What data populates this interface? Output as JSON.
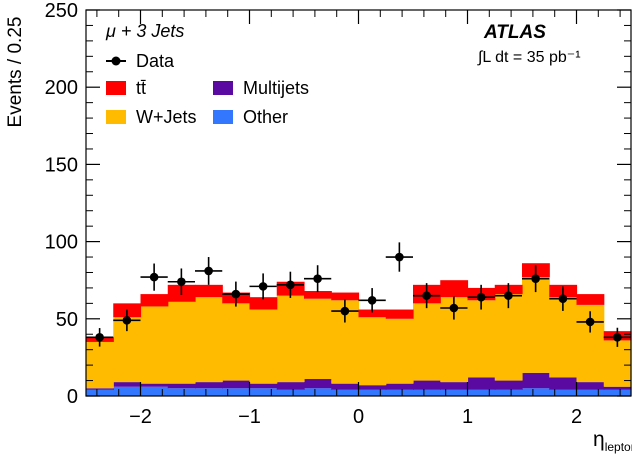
{
  "chart_data": {
    "type": "bar",
    "stacked": true,
    "title": "",
    "ylabel": "Events / 0.25",
    "xlabel_main": "η",
    "xlabel_sub": "lepton",
    "xlim": [
      -2.5,
      2.5
    ],
    "ylim": [
      0,
      250
    ],
    "bin_width": 0.25,
    "bin_edges": [
      -2.5,
      -2.25,
      -2.0,
      -1.75,
      -1.5,
      -1.25,
      -1.0,
      -0.75,
      -0.5,
      -0.25,
      0.0,
      0.25,
      0.5,
      0.75,
      1.0,
      1.25,
      1.5,
      1.75,
      2.0,
      2.25,
      2.5
    ],
    "x_ticks": [
      -2,
      -1,
      0,
      1,
      2
    ],
    "x_tick_labels": [
      "−2",
      "−1",
      "0",
      "1",
      "2"
    ],
    "y_ticks": [
      0,
      50,
      100,
      150,
      200,
      250
    ],
    "y_tick_labels": [
      "0",
      "50",
      "100",
      "150",
      "200",
      "250"
    ],
    "channel_label": "μ + 3 Jets",
    "experiment_label": "ATLAS",
    "lumi_label": "∫L dt = 35 pb⁻¹",
    "legend": {
      "placement": "top-left",
      "entries": [
        {
          "name": "Data",
          "kind": "marker",
          "color": "#000000"
        },
        {
          "name": "tt̄",
          "kind": "box",
          "color": "#ff0000"
        },
        {
          "name": "Multijets",
          "kind": "box",
          "color": "#5a0aa0"
        },
        {
          "name": "W+Jets",
          "kind": "box",
          "color": "#ffbb00"
        },
        {
          "name": "Other",
          "kind": "box",
          "color": "#3377ff"
        }
      ]
    },
    "series": [
      {
        "name": "Other",
        "color": "#3377ff",
        "values": [
          4,
          6,
          6,
          5,
          5,
          5,
          5,
          4,
          5,
          4,
          4,
          4,
          4,
          4,
          4,
          4,
          5,
          4,
          4,
          4
        ]
      },
      {
        "name": "Multijets",
        "color": "#5a0aa0",
        "values": [
          1,
          3,
          2,
          3,
          4,
          5,
          3,
          5,
          6,
          4,
          3,
          4,
          6,
          5,
          8,
          6,
          10,
          8,
          5,
          2
        ]
      },
      {
        "name": "W+Jets",
        "color": "#ffbb00",
        "values": [
          30,
          42,
          50,
          53,
          55,
          50,
          48,
          56,
          52,
          54,
          44,
          42,
          50,
          55,
          50,
          56,
          62,
          52,
          50,
          30
        ]
      },
      {
        "name": "tt̄",
        "color": "#ff0000",
        "values": [
          3,
          9,
          8,
          11,
          8,
          7,
          8,
          9,
          5,
          5,
          5,
          6,
          12,
          11,
          8,
          6,
          9,
          8,
          7,
          6
        ]
      }
    ],
    "data_points": {
      "name": "Data",
      "x": [
        -2.375,
        -2.125,
        -1.875,
        -1.625,
        -1.375,
        -1.125,
        -0.875,
        -0.625,
        -0.375,
        -0.125,
        0.125,
        0.375,
        0.625,
        0.875,
        1.125,
        1.375,
        1.625,
        1.875,
        2.125,
        2.375
      ],
      "y": [
        38,
        49,
        77,
        74,
        81,
        66,
        71,
        72,
        76,
        55,
        62,
        90,
        65,
        57,
        64,
        65,
        76,
        63,
        48,
        38
      ],
      "yerr": [
        6,
        7,
        8.8,
        8.6,
        9,
        8.1,
        8.4,
        8.5,
        8.7,
        7.4,
        7.9,
        9.5,
        8.1,
        7.5,
        8,
        8.1,
        8.7,
        7.9,
        6.9,
        6.2
      ]
    }
  }
}
